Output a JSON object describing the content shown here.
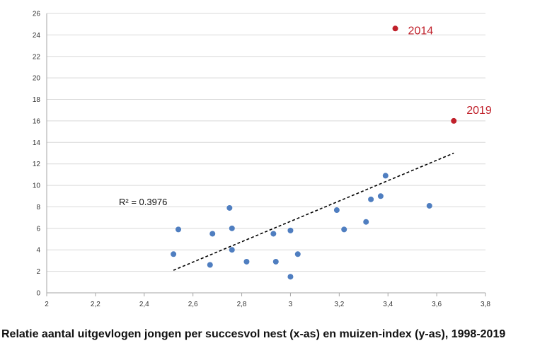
{
  "chart_data": {
    "type": "scatter",
    "title": "Relatie aantal uitgevlogen jongen per succesvol nest (x-as) en muizen-index (y-as), 1998-2019",
    "xlabel": "",
    "ylabel": "",
    "xlim": [
      2,
      3.8
    ],
    "ylim": [
      0,
      26
    ],
    "x_ticks": [
      "2",
      "2,2",
      "2,4",
      "2,6",
      "2,8",
      "3",
      "3,2",
      "3,4",
      "3,6",
      "3,8"
    ],
    "y_ticks": [
      "0",
      "2",
      "4",
      "6",
      "8",
      "10",
      "12",
      "14",
      "16",
      "18",
      "20",
      "22",
      "24",
      "26"
    ],
    "grid": "horizontal",
    "series": [
      {
        "color": "#4f7ec0",
        "points": [
          {
            "x": 2.52,
            "y": 3.6
          },
          {
            "x": 2.54,
            "y": 5.9
          },
          {
            "x": 2.67,
            "y": 2.6
          },
          {
            "x": 2.68,
            "y": 5.5
          },
          {
            "x": 2.75,
            "y": 7.9
          },
          {
            "x": 2.76,
            "y": 6.0
          },
          {
            "x": 2.76,
            "y": 4.0
          },
          {
            "x": 2.82,
            "y": 2.9
          },
          {
            "x": 2.93,
            "y": 5.5
          },
          {
            "x": 2.94,
            "y": 2.9
          },
          {
            "x": 3.0,
            "y": 5.8
          },
          {
            "x": 3.0,
            "y": 1.5
          },
          {
            "x": 3.03,
            "y": 3.6
          },
          {
            "x": 3.19,
            "y": 7.7
          },
          {
            "x": 3.22,
            "y": 5.9
          },
          {
            "x": 3.31,
            "y": 6.6
          },
          {
            "x": 3.33,
            "y": 8.7
          },
          {
            "x": 3.37,
            "y": 9.0
          },
          {
            "x": 3.39,
            "y": 10.9
          },
          {
            "x": 3.57,
            "y": 8.1
          }
        ]
      },
      {
        "color": "#c0202a",
        "points": [
          {
            "x": 3.43,
            "y": 24.6,
            "label": "2014"
          },
          {
            "x": 3.67,
            "y": 16.0,
            "label": "2019"
          }
        ]
      }
    ],
    "trendline": {
      "x1": 2.52,
      "y1": 2.1,
      "x2": 3.67,
      "y2": 13.0,
      "style": "dashed",
      "color": "#000000"
    },
    "r2_label": "R² = 0.3976"
  },
  "caption": "Relatie aantal uitgevlogen jongen per succesvol nest (x-as) en muizen-index (y-as), 1998-2019"
}
